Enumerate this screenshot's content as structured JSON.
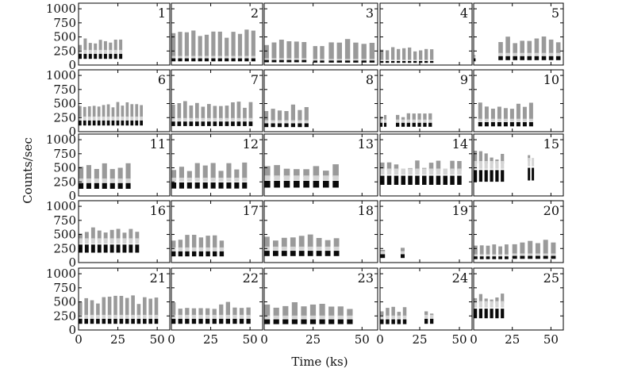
{
  "chart_data": {
    "type": "scatter",
    "xlabel": "Time (ks)",
    "ylabel": "Counts/sec",
    "xlim": [
      0,
      58
    ],
    "ylim": [
      0,
      1100
    ],
    "xticks": [
      0,
      25,
      50
    ],
    "yticks": [
      0,
      250,
      500,
      750,
      1000
    ],
    "grid": false,
    "colors": {
      "upper": "#9a9a9a",
      "upper_light": "#d4d4d4",
      "lower": "#0a0a0a"
    },
    "panels": [
      {
        "label": "1",
        "segments": [
          [
            0,
            29,
            9,
            200,
            420
          ]
        ]
      },
      {
        "label": "2",
        "segments": [
          [
            0,
            55,
            13,
            120,
            560
          ]
        ]
      },
      {
        "label": "3",
        "segments": [
          [
            0,
            23,
            6,
            90,
            400
          ],
          [
            25,
            32,
            2,
            80,
            300
          ],
          [
            33,
            58,
            6,
            80,
            420
          ]
        ]
      },
      {
        "label": "4",
        "segments": [
          [
            0,
            35,
            10,
            70,
            280
          ]
        ]
      },
      {
        "label": "5",
        "segments": [
          [
            0,
            2,
            1,
            120,
            180
          ],
          [
            16,
            58,
            9,
            160,
            450
          ]
        ]
      },
      {
        "label": "6",
        "segments": [
          [
            0,
            42,
            14,
            200,
            470
          ]
        ]
      },
      {
        "label": "7",
        "segments": [
          [
            0,
            53,
            14,
            180,
            480
          ]
        ]
      },
      {
        "label": "8",
        "segments": [
          [
            0,
            24,
            7,
            150,
            420
          ]
        ]
      },
      {
        "label": "9",
        "segments": [
          [
            0,
            5,
            2,
            160,
            300
          ],
          [
            10,
            34,
            7,
            160,
            290
          ]
        ]
      },
      {
        "label": "10",
        "segments": [
          [
            3,
            40,
            9,
            170,
            480
          ]
        ]
      },
      {
        "label": "11",
        "segments": [
          [
            0,
            35,
            7,
            230,
            520
          ]
        ]
      },
      {
        "label": "12",
        "segments": [
          [
            0,
            50,
            10,
            240,
            520
          ]
        ]
      },
      {
        "label": "13",
        "segments": [
          [
            0,
            40,
            8,
            270,
            520
          ]
        ]
      },
      {
        "label": "14",
        "segments": [
          [
            0,
            53,
            12,
            360,
            560
          ]
        ]
      },
      {
        "label": "15",
        "segments": [
          [
            0,
            21,
            6,
            460,
            700
          ],
          [
            35,
            40,
            2,
            500,
            650
          ]
        ]
      },
      {
        "label": "16",
        "segments": [
          [
            0,
            40,
            10,
            320,
            560
          ]
        ]
      },
      {
        "label": "17",
        "segments": [
          [
            0,
            35,
            8,
            200,
            430
          ]
        ]
      },
      {
        "label": "18",
        "segments": [
          [
            0,
            40,
            9,
            210,
            440
          ]
        ]
      },
      {
        "label": "19",
        "segments": [
          [
            0,
            5,
            1,
            150,
            250
          ],
          [
            13,
            17,
            1,
            150,
            250
          ]
        ]
      },
      {
        "label": "20",
        "segments": [
          [
            0,
            24,
            6,
            110,
            300
          ],
          [
            25,
            55,
            6,
            120,
            380
          ]
        ]
      },
      {
        "label": "21",
        "segments": [
          [
            0,
            52,
            14,
            200,
            540
          ]
        ]
      },
      {
        "label": "22",
        "segments": [
          [
            0,
            52,
            12,
            200,
            440
          ]
        ]
      },
      {
        "label": "23",
        "segments": [
          [
            0,
            47,
            10,
            190,
            430
          ]
        ]
      },
      {
        "label": "24",
        "segments": [
          [
            0,
            18,
            5,
            190,
            360
          ],
          [
            28,
            35,
            2,
            200,
            330
          ]
        ]
      },
      {
        "label": "25",
        "segments": [
          [
            0,
            21,
            6,
            380,
            620
          ]
        ]
      }
    ]
  }
}
